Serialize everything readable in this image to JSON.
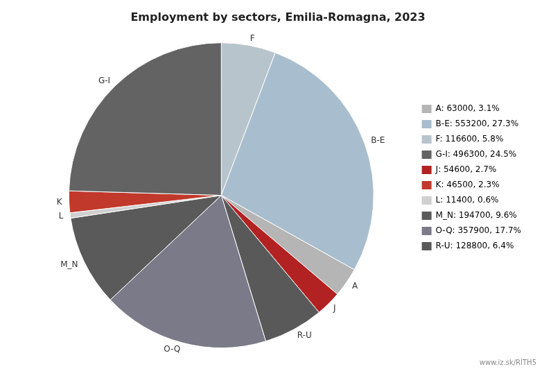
{
  "chart_data": {
    "type": "pie",
    "title": "Employment by sectors, Emilia-Romagna, 2023",
    "categories": [
      "F",
      "B-E",
      "A",
      "J",
      "R-U",
      "O-Q",
      "M_N",
      "L",
      "K",
      "G-I"
    ],
    "values": [
      116600,
      553200,
      63000,
      54600,
      128800,
      357900,
      194700,
      11400,
      46500,
      496300
    ],
    "colors": [
      "#b8c4cc",
      "#a8bece",
      "#b5b5b5",
      "#b22222",
      "#595959",
      "#7a7a88",
      "#5a5a5a",
      "#d0d0d0",
      "#c0392b",
      "#636363"
    ],
    "legend": "right",
    "legend_entries": [
      {
        "label": "A: 63000, 3.1%",
        "color": "#b5b5b5"
      },
      {
        "label": "B-E: 553200, 27.3%",
        "color": "#a8bece"
      },
      {
        "label": "F: 116600, 5.8%",
        "color": "#b8c4cc"
      },
      {
        "label": "G-I: 496300, 24.5%",
        "color": "#636363"
      },
      {
        "label": "J: 54600, 2.7%",
        "color": "#b22222"
      },
      {
        "label": "K: 46500, 2.3%",
        "color": "#c0392b"
      },
      {
        "label": "L: 11400, 0.6%",
        "color": "#d0d0d0"
      },
      {
        "label": "M_N: 194700, 9.6%",
        "color": "#5a5a5a"
      },
      {
        "label": "O-Q: 357900, 17.7%",
        "color": "#7a7a88"
      },
      {
        "label": "R-U: 128800, 6.4%",
        "color": "#595959"
      }
    ],
    "annotations": [
      {
        "text": "www.iz.sk/RITH5"
      }
    ]
  }
}
